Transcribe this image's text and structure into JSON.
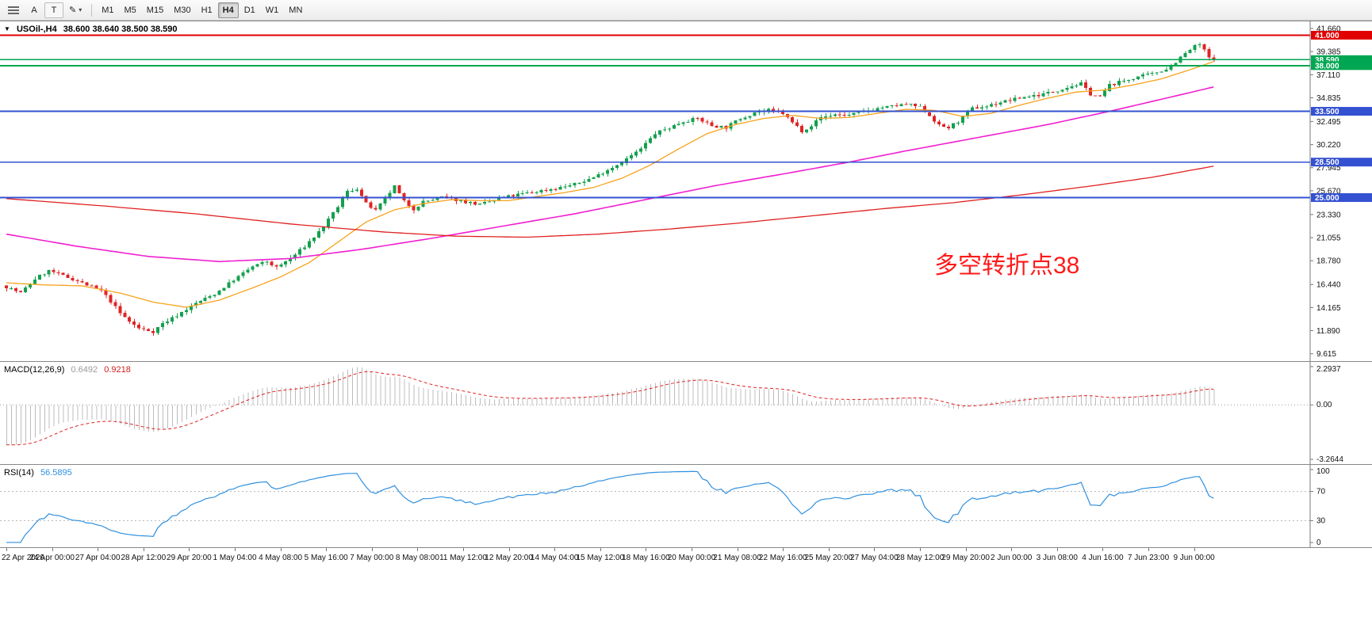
{
  "toolbar": {
    "cursor_label": "A",
    "text_label": "T",
    "icons": {
      "pencil": "✎",
      "chevron": "▾",
      "collapse": "▼"
    },
    "timeframes": [
      "M1",
      "M5",
      "M15",
      "M30",
      "H1",
      "H4",
      "D1",
      "W1",
      "MN"
    ],
    "active_timeframe": "H4"
  },
  "main_chart": {
    "symbol_label": "USOil-,H4",
    "ohlc": "38.600 38.640 38.500 38.590",
    "annotation": {
      "text": "多空转折点38",
      "color": "#ff1a1a"
    },
    "price_axis": {
      "min": 9.2,
      "max": 42.05,
      "ticks": [
        "41.660",
        "39.385",
        "37.110",
        "34.835",
        "32.495",
        "30.220",
        "27.945",
        "25.670",
        "23.330",
        "21.055",
        "18.780",
        "16.440",
        "14.165",
        "11.890",
        "9.615"
      ]
    },
    "levels": [
      {
        "price": 41.0,
        "label": "41.000",
        "color": "#e00000",
        "width": 1.6
      },
      {
        "price": 38.59,
        "label": "38.590",
        "color": "#00a651",
        "width": 1.6
      },
      {
        "price": 38.0,
        "label": "38.000",
        "color": "#00a651",
        "width": 2.2
      },
      {
        "price": 33.5,
        "label": "33.500",
        "color": "#3451d1",
        "width": 1.8
      },
      {
        "price": 28.5,
        "label": "28.500",
        "color": "#3451d1",
        "width": 1.8
      },
      {
        "price": 25.0,
        "label": "25.000",
        "color": "#3451d1",
        "width": 1.8
      }
    ]
  },
  "macd": {
    "label": "MACD(12,26,9)",
    "value_main": "0.6492",
    "value_signal": "0.9218",
    "params": {
      "fast": 12,
      "slow": 26,
      "signal": 9
    },
    "axis": {
      "max": 2.2937,
      "min": -3.2644,
      "ticks": [
        "2.2937",
        "0.00",
        "-3.2644"
      ]
    },
    "histogram_color": "#bcbcbc",
    "signal_color": "#e02020"
  },
  "rsi": {
    "label": "RSI(14)",
    "value": "56.5895",
    "period": 14,
    "axis": {
      "max": 100,
      "min": 0,
      "ticks": [
        "100",
        "70",
        "30",
        "0"
      ],
      "levels": [
        70,
        30
      ]
    },
    "line_color": "#2f8fde"
  },
  "time_axis": {
    "labels": [
      "22 Apr 2020",
      "24 Apr 00:00",
      "27 Apr 04:00",
      "28 Apr 12:00",
      "29 Apr 20:00",
      "1 May 04:00",
      "4 May 08:00",
      "5 May 16:00",
      "7 May 00:00",
      "8 May 08:00",
      "11 May 12:00",
      "12 May 20:00",
      "14 May 04:00",
      "15 May 12:00",
      "18 May 16:00",
      "20 May 00:00",
      "21 May 08:00",
      "22 May 16:00",
      "25 May 20:00",
      "27 May 04:00",
      "28 May 12:00",
      "29 May 20:00",
      "2 Jun 00:00",
      "3 Jun 08:00",
      "4 Jun 16:00",
      "7 Jun 23:00",
      "9 Jun 00:00"
    ]
  },
  "chart_data": {
    "type": "candlestick",
    "symbol": "USOil-",
    "timeframe": "H4",
    "title": "USOil-,H4 38.600 38.640 38.500 38.590",
    "x_range": {
      "start": "22 Apr 2020",
      "end": "9 Jun 2020"
    },
    "y_range": [
      9.2,
      42.05
    ],
    "last_close": 38.59,
    "candles": {
      "count": 256,
      "seed": 7,
      "noise": 0.15,
      "wick": 0.32,
      "up_color": "#14a04e",
      "down_color": "#e02424",
      "close_anchors": [
        [
          0,
          16.2
        ],
        [
          3,
          15.6
        ],
        [
          6,
          17.0
        ],
        [
          9,
          17.8
        ],
        [
          12,
          17.3
        ],
        [
          15,
          16.8
        ],
        [
          18,
          16.2
        ],
        [
          20,
          15.8
        ],
        [
          22,
          14.8
        ],
        [
          24,
          13.6
        ],
        [
          26,
          12.8
        ],
        [
          28,
          12.1
        ],
        [
          31,
          11.8
        ],
        [
          33,
          12.6
        ],
        [
          36,
          13.4
        ],
        [
          40,
          14.6
        ],
        [
          44,
          15.5
        ],
        [
          48,
          16.9
        ],
        [
          52,
          18.2
        ],
        [
          55,
          18.7
        ],
        [
          57,
          18.1
        ],
        [
          60,
          19.0
        ],
        [
          63,
          20.2
        ],
        [
          66,
          21.6
        ],
        [
          69,
          23.4
        ],
        [
          72,
          25.6
        ],
        [
          74,
          25.9
        ],
        [
          76,
          24.4
        ],
        [
          78,
          23.7
        ],
        [
          80,
          24.9
        ],
        [
          82,
          26.1
        ],
        [
          84,
          24.6
        ],
        [
          86,
          23.9
        ],
        [
          88,
          24.6
        ],
        [
          92,
          25.0
        ],
        [
          96,
          24.7
        ],
        [
          100,
          24.3
        ],
        [
          104,
          24.9
        ],
        [
          108,
          25.3
        ],
        [
          112,
          25.6
        ],
        [
          116,
          25.9
        ],
        [
          120,
          26.3
        ],
        [
          124,
          27.0
        ],
        [
          128,
          28.0
        ],
        [
          131,
          28.8
        ],
        [
          134,
          29.8
        ],
        [
          137,
          31.3
        ],
        [
          140,
          31.9
        ],
        [
          143,
          32.5
        ],
        [
          146,
          32.8
        ],
        [
          149,
          32.1
        ],
        [
          152,
          31.9
        ],
        [
          155,
          32.8
        ],
        [
          158,
          33.4
        ],
        [
          161,
          33.6
        ],
        [
          164,
          33.3
        ],
        [
          166,
          32.4
        ],
        [
          168,
          31.6
        ],
        [
          170,
          32.1
        ],
        [
          172,
          32.9
        ],
        [
          175,
          33.2
        ],
        [
          178,
          33.1
        ],
        [
          181,
          33.5
        ],
        [
          184,
          33.8
        ],
        [
          187,
          34.0
        ],
        [
          190,
          34.2
        ],
        [
          193,
          33.9
        ],
        [
          195,
          33.1
        ],
        [
          197,
          32.1
        ],
        [
          199,
          31.9
        ],
        [
          201,
          32.5
        ],
        [
          204,
          33.8
        ],
        [
          207,
          34.0
        ],
        [
          210,
          34.4
        ],
        [
          213,
          34.7
        ],
        [
          216,
          35.0
        ],
        [
          219,
          35.2
        ],
        [
          222,
          35.6
        ],
        [
          225,
          36.0
        ],
        [
          227,
          36.2
        ],
        [
          229,
          35.2
        ],
        [
          231,
          34.9
        ],
        [
          233,
          36.1
        ],
        [
          236,
          36.5
        ],
        [
          239,
          36.9
        ],
        [
          242,
          37.2
        ],
        [
          245,
          37.7
        ],
        [
          247,
          38.4
        ],
        [
          249,
          39.2
        ],
        [
          251,
          39.9
        ],
        [
          252,
          40.1
        ],
        [
          253,
          39.5
        ],
        [
          254,
          38.8
        ],
        [
          255,
          38.59
        ]
      ]
    },
    "pre_history": {
      "bars": 48,
      "start": 33.5,
      "end": 16.3
    },
    "moving_averages": [
      {
        "name": "fast",
        "color": "#f7a21b",
        "width": 1.3,
        "anchors": [
          [
            0,
            16.6
          ],
          [
            8,
            16.4
          ],
          [
            16,
            16.3
          ],
          [
            24,
            15.6
          ],
          [
            31,
            14.7
          ],
          [
            38,
            14.2
          ],
          [
            45,
            14.9
          ],
          [
            52,
            16.1
          ],
          [
            58,
            17.2
          ],
          [
            64,
            18.6
          ],
          [
            70,
            20.6
          ],
          [
            76,
            22.6
          ],
          [
            82,
            23.8
          ],
          [
            88,
            24.4
          ],
          [
            94,
            24.8
          ],
          [
            100,
            24.7
          ],
          [
            106,
            24.7
          ],
          [
            112,
            25.1
          ],
          [
            118,
            25.5
          ],
          [
            124,
            26.0
          ],
          [
            130,
            26.9
          ],
          [
            136,
            28.2
          ],
          [
            142,
            29.8
          ],
          [
            148,
            31.3
          ],
          [
            154,
            32.2
          ],
          [
            160,
            32.8
          ],
          [
            166,
            33.1
          ],
          [
            172,
            32.8
          ],
          [
            178,
            32.9
          ],
          [
            184,
            33.3
          ],
          [
            190,
            33.7
          ],
          [
            196,
            33.6
          ],
          [
            202,
            33.0
          ],
          [
            208,
            33.3
          ],
          [
            214,
            34.1
          ],
          [
            220,
            34.8
          ],
          [
            226,
            35.4
          ],
          [
            232,
            35.6
          ],
          [
            238,
            36.1
          ],
          [
            244,
            36.7
          ],
          [
            250,
            37.6
          ],
          [
            255,
            38.4
          ]
        ]
      },
      {
        "name": "mid",
        "color": "#f01fd0",
        "width": 1.6,
        "anchors": [
          [
            0,
            21.4
          ],
          [
            15,
            20.2
          ],
          [
            30,
            19.2
          ],
          [
            45,
            18.7
          ],
          [
            60,
            19.0
          ],
          [
            75,
            19.9
          ],
          [
            90,
            21.0
          ],
          [
            105,
            22.2
          ],
          [
            120,
            23.4
          ],
          [
            135,
            24.8
          ],
          [
            150,
            26.2
          ],
          [
            165,
            27.4
          ],
          [
            178,
            28.5
          ],
          [
            190,
            29.6
          ],
          [
            205,
            30.9
          ],
          [
            220,
            32.2
          ],
          [
            233,
            33.5
          ],
          [
            245,
            34.8
          ],
          [
            255,
            35.9
          ]
        ]
      },
      {
        "name": "slow",
        "color": "#e02020",
        "width": 1.3,
        "anchors": [
          [
            0,
            24.9
          ],
          [
            20,
            24.2
          ],
          [
            40,
            23.4
          ],
          [
            60,
            22.4
          ],
          [
            80,
            21.6
          ],
          [
            95,
            21.2
          ],
          [
            110,
            21.1
          ],
          [
            125,
            21.4
          ],
          [
            140,
            21.9
          ],
          [
            155,
            22.5
          ],
          [
            170,
            23.2
          ],
          [
            185,
            23.9
          ],
          [
            200,
            24.5
          ],
          [
            215,
            25.3
          ],
          [
            230,
            26.2
          ],
          [
            242,
            27.0
          ],
          [
            255,
            28.1
          ]
        ]
      }
    ]
  }
}
